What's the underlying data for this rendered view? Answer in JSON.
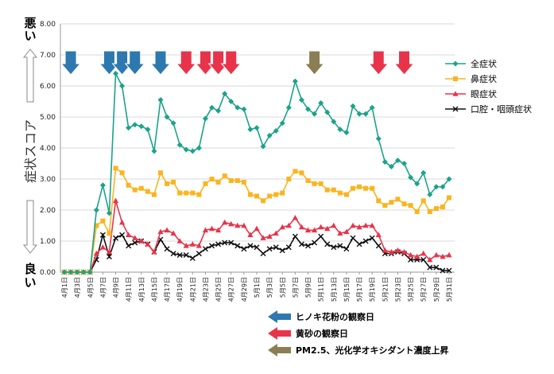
{
  "chart_data": {
    "type": "line",
    "ylabel": "症状スコア",
    "y_top_label": [
      "悪",
      "い"
    ],
    "y_bottom_label": [
      "良",
      "い"
    ],
    "ylim": [
      0,
      8
    ],
    "yticks": [
      "0.00",
      "1.00",
      "2.00",
      "3.00",
      "4.00",
      "5.00",
      "6.00",
      "7.00",
      "8.00"
    ],
    "xtick_labels": [
      "4月1日",
      "4月3日",
      "4月5日",
      "4月7日",
      "4月9日",
      "4月11日",
      "4月13日",
      "4月15日",
      "4月17日",
      "4月19日",
      "4月21日",
      "4月23日",
      "4月25日",
      "4月27日",
      "4月29日",
      "5月1日",
      "5月3日",
      "5月5日",
      "5月7日",
      "5月9日",
      "5月11日",
      "5月13日",
      "5月15日",
      "5月17日",
      "5月19日",
      "5月21日",
      "5月23日",
      "5月25日",
      "5月27日",
      "5月29日",
      "5月31日"
    ],
    "n_days": 61,
    "legend_position": "right",
    "series": [
      {
        "name": "全症状",
        "color": "#1aa38a",
        "marker": "diamond",
        "values": [
          0,
          0,
          0,
          0,
          0,
          2.0,
          2.8,
          1.9,
          6.4,
          6.0,
          4.65,
          4.75,
          4.7,
          4.6,
          3.9,
          5.55,
          5.0,
          4.8,
          4.1,
          3.95,
          3.9,
          4.0,
          4.95,
          5.3,
          5.2,
          5.75,
          5.5,
          5.3,
          5.25,
          4.6,
          4.65,
          4.05,
          4.4,
          4.55,
          4.8,
          5.3,
          6.15,
          5.55,
          5.25,
          5.1,
          5.45,
          5.15,
          4.85,
          4.6,
          4.5,
          5.35,
          5.1,
          5.1,
          5.3,
          4.3,
          3.55,
          3.4,
          3.6,
          3.5,
          3.05,
          2.85,
          3.2,
          2.5,
          2.75,
          2.75,
          3.0
        ]
      },
      {
        "name": "鼻症状",
        "color": "#fbb41e",
        "marker": "square",
        "values": [
          0,
          0,
          0,
          0,
          0,
          1.5,
          1.65,
          1.25,
          3.35,
          3.2,
          2.8,
          2.65,
          2.7,
          2.6,
          2.5,
          3.2,
          2.85,
          2.9,
          2.55,
          2.55,
          2.55,
          2.5,
          2.85,
          3.0,
          2.9,
          3.1,
          2.95,
          2.95,
          2.9,
          2.5,
          2.45,
          2.3,
          2.45,
          2.5,
          2.55,
          3.0,
          3.25,
          3.2,
          2.95,
          2.85,
          2.85,
          2.65,
          2.65,
          2.55,
          2.5,
          2.7,
          2.75,
          2.7,
          2.7,
          2.3,
          2.15,
          2.25,
          2.35,
          2.2,
          2.15,
          1.95,
          2.3,
          1.95,
          2.05,
          2.1,
          2.4
        ]
      },
      {
        "name": "眼症状",
        "color": "#e8344a",
        "marker": "triangle",
        "values": [
          0,
          0,
          0,
          0,
          0,
          0.6,
          0.8,
          0.65,
          2.3,
          1.6,
          1.2,
          1.1,
          1.0,
          0.9,
          0.65,
          1.3,
          1.35,
          1.25,
          1.0,
          0.85,
          0.9,
          0.85,
          1.35,
          1.4,
          1.35,
          1.6,
          1.55,
          1.5,
          1.5,
          1.2,
          1.4,
          1.1,
          1.15,
          1.25,
          1.45,
          1.5,
          1.75,
          1.45,
          1.35,
          1.35,
          1.45,
          1.4,
          1.5,
          1.25,
          1.3,
          1.5,
          1.45,
          1.5,
          1.5,
          1.2,
          0.7,
          0.65,
          0.7,
          0.65,
          0.55,
          0.5,
          0.6,
          0.4,
          0.55,
          0.5,
          0.55
        ]
      },
      {
        "name": "口腔・咽頭症状",
        "color": "#111111",
        "marker": "x",
        "values": [
          0,
          0,
          0,
          0,
          0,
          0.4,
          1.2,
          0.5,
          1.1,
          1.2,
          0.85,
          0.95,
          1.0,
          0.9,
          0.65,
          1.05,
          0.75,
          0.6,
          0.55,
          0.55,
          0.45,
          0.6,
          0.75,
          0.85,
          0.9,
          0.95,
          0.95,
          0.85,
          0.75,
          0.85,
          0.8,
          0.6,
          0.75,
          0.8,
          0.7,
          0.8,
          1.15,
          0.9,
          0.85,
          0.95,
          1.15,
          0.9,
          0.8,
          0.85,
          0.75,
          1.1,
          0.9,
          1.0,
          1.1,
          0.85,
          0.6,
          0.6,
          0.65,
          0.6,
          0.4,
          0.4,
          0.4,
          0.15,
          0.15,
          0.05,
          0.05
        ]
      }
    ],
    "arrows": [
      {
        "type": "hinoki",
        "color": "#2e78b0",
        "days": [
          1,
          7,
          9,
          11,
          15
        ]
      },
      {
        "type": "kosa",
        "color": "#e8344a",
        "days": [
          19,
          22,
          24,
          26,
          49,
          53
        ]
      },
      {
        "type": "pm25",
        "color": "#8c7e54",
        "days": [
          39
        ]
      }
    ],
    "arrow_legend": [
      {
        "type": "hinoki",
        "color": "#2e78b0",
        "label": "ヒノキ花粉の観察日"
      },
      {
        "type": "kosa",
        "color": "#e8344a",
        "label": "黄砂の観察日"
      },
      {
        "type": "pm25",
        "color": "#8c7e54",
        "label": "PM2.5、光化学オキシダント濃度上昇"
      }
    ]
  }
}
